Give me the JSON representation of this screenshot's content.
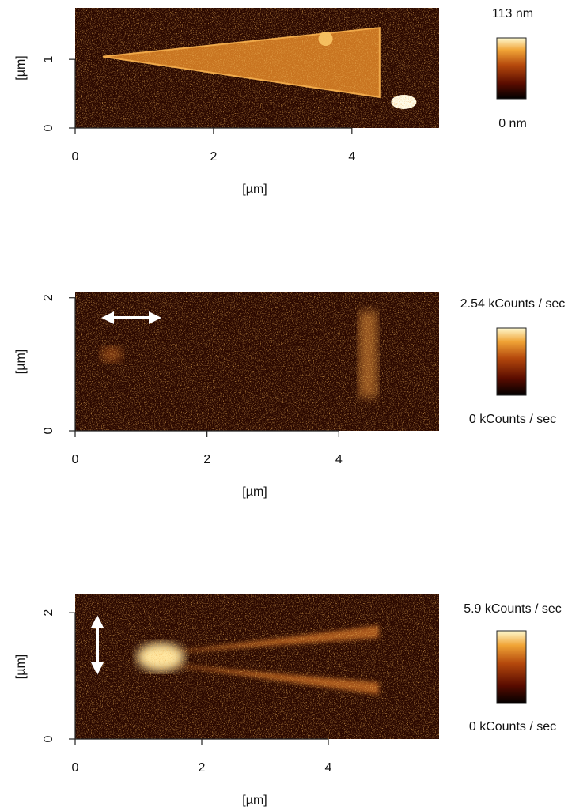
{
  "chart_data": [
    {
      "type": "heatmap",
      "xlabel": "[µm]",
      "ylabel": "[µm]",
      "xlim": [
        0,
        5.26
      ],
      "ylim": [
        0,
        1.75
      ],
      "xticks": [
        0,
        2,
        4
      ],
      "yticks": [
        0,
        1
      ],
      "colorbar_ticks": [
        {
          "value": 0,
          "label": "0 nm"
        },
        {
          "value": 113,
          "label": "113 nm"
        }
      ]
    },
    {
      "type": "heatmap",
      "xlabel": "[µm]",
      "ylabel": "[µm]",
      "xlim": [
        0,
        5.52
      ],
      "ylim": [
        0,
        2.08
      ],
      "xticks": [
        0,
        2,
        4
      ],
      "yticks": [
        0,
        2
      ],
      "colorbar_ticks": [
        {
          "value": 0,
          "label": "0 kCounts / sec"
        },
        {
          "value": 2.54,
          "label": "2.54 kCounts / sec"
        }
      ]
    },
    {
      "type": "heatmap",
      "xlabel": "[µm]",
      "ylabel": "[µm]",
      "xlim": [
        0,
        5.75
      ],
      "ylim": [
        0,
        2.29
      ],
      "xticks": [
        0,
        2,
        4
      ],
      "yticks": [
        0,
        2
      ],
      "colorbar_ticks": [
        {
          "value": 0,
          "label": "0 kCounts / sec"
        },
        {
          "value": 5.9,
          "label": "5.9 kCounts / sec"
        }
      ]
    }
  ]
}
